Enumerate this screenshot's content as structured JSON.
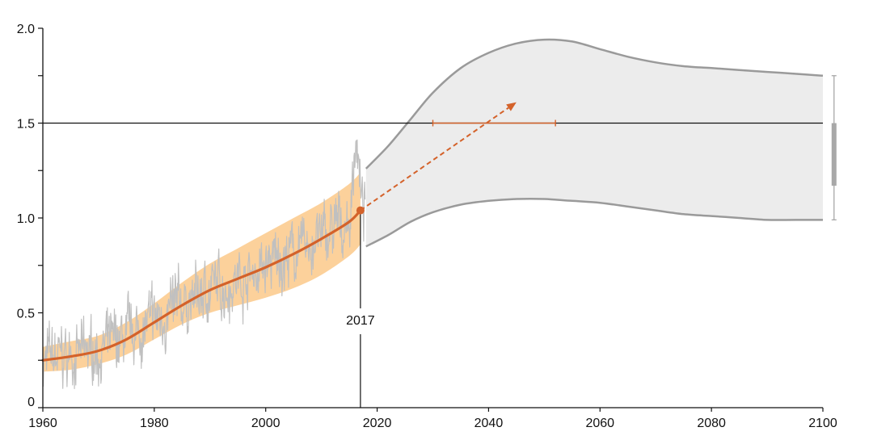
{
  "chart_data": {
    "type": "line",
    "title": "",
    "xlabel": "",
    "ylabel": "",
    "xlim": [
      1960,
      2100
    ],
    "ylim": [
      0,
      2.0
    ],
    "x_ticks": [
      "1960",
      "1980",
      "2000",
      "2020",
      "2040",
      "2060",
      "2080",
      "2100"
    ],
    "y_ticks": [
      {
        "value": 0,
        "label": "0"
      },
      {
        "value": 0.25,
        "label": ""
      },
      {
        "value": 0.5,
        "label": "0.5"
      },
      {
        "value": 0.75,
        "label": ""
      },
      {
        "value": 1.0,
        "label": "1.0"
      },
      {
        "value": 1.25,
        "label": ""
      },
      {
        "value": 1.5,
        "label": "1.5"
      },
      {
        "value": 1.75,
        "label": ""
      },
      {
        "value": 2.0,
        "label": "2.0"
      }
    ],
    "reference_line": {
      "y": 1.5
    },
    "marker_year": {
      "x": 2017,
      "label": "2017"
    },
    "grid": false,
    "colors": {
      "observed": "#c0c0c0",
      "trend": "#d4622a",
      "trend_band": "#fbc98a",
      "projection_fill": "#ececec",
      "projection_edge": "#9a9a9a",
      "axis": "#111111"
    },
    "observed_monthly": {
      "x_start": 1960,
      "x_end": 2017.9,
      "note_pattern": "monthly anomaly wiggles around trend",
      "peak": {
        "x": 2016.2,
        "y": 1.58
      }
    },
    "trend": {
      "x": [
        1960,
        1965,
        1970,
        1975,
        1980,
        1985,
        1990,
        1995,
        2000,
        2005,
        2010,
        2015,
        2017
      ],
      "y": [
        0.25,
        0.27,
        0.3,
        0.36,
        0.45,
        0.54,
        0.62,
        0.68,
        0.74,
        0.81,
        0.89,
        0.98,
        1.04
      ]
    },
    "trend_band": {
      "x": [
        1960,
        1965,
        1970,
        1975,
        1980,
        1985,
        1990,
        1995,
        2000,
        2005,
        2010,
        2015,
        2017
      ],
      "upper": [
        0.32,
        0.35,
        0.38,
        0.45,
        0.55,
        0.66,
        0.76,
        0.84,
        0.92,
        1.0,
        1.08,
        1.18,
        1.24
      ],
      "lower": [
        0.19,
        0.2,
        0.23,
        0.28,
        0.36,
        0.44,
        0.5,
        0.54,
        0.58,
        0.63,
        0.7,
        0.8,
        0.86
      ]
    },
    "current_point": {
      "x": 2017,
      "y": 1.04
    },
    "projection_arrow": {
      "from": {
        "x": 2017,
        "y": 1.04
      },
      "to": {
        "x": 2045,
        "y": 1.61
      }
    },
    "crossing_range": {
      "y": 1.5,
      "x_min": 2030,
      "x_max": 2052
    },
    "projection_envelope": {
      "x": [
        2018,
        2022,
        2026,
        2030,
        2035,
        2040,
        2045,
        2050,
        2055,
        2060,
        2065,
        2070,
        2075,
        2080,
        2085,
        2090,
        2095,
        2100
      ],
      "upper": [
        1.26,
        1.38,
        1.52,
        1.66,
        1.79,
        1.87,
        1.92,
        1.94,
        1.93,
        1.89,
        1.85,
        1.82,
        1.8,
        1.79,
        1.78,
        1.77,
        1.76,
        1.75
      ],
      "lower": [
        0.85,
        0.91,
        0.98,
        1.03,
        1.07,
        1.09,
        1.1,
        1.1,
        1.09,
        1.08,
        1.06,
        1.04,
        1.02,
        1.01,
        1.0,
        0.99,
        0.99,
        0.99
      ]
    },
    "range_2100": {
      "x": 2102,
      "whisker": [
        0.99,
        1.75
      ],
      "box": [
        1.17,
        1.5
      ]
    }
  }
}
